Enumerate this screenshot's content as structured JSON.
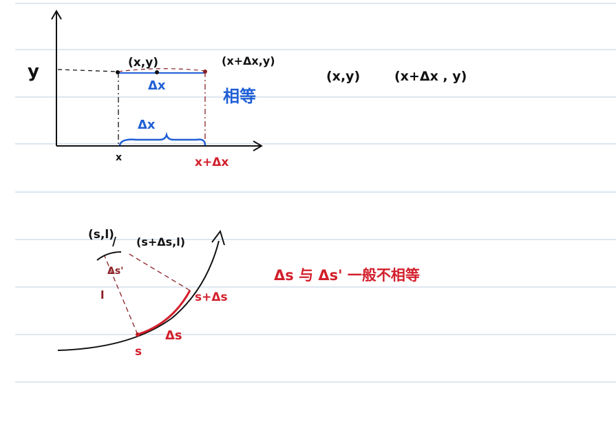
{
  "colors": {
    "ink": "#111111",
    "blue": "#1f5fd6",
    "red": "#d21f2b",
    "darkred": "#8a1f24",
    "ruling": "#c9d6e6"
  },
  "top_diagram": {
    "y_axis_label": "y",
    "point_left": "(x,y)",
    "point_right": "(x+Δx,y)",
    "delta_x_upper": "Δx",
    "delta_x_lower": "Δx",
    "equal_note": "相等",
    "x_tick": "x",
    "x_plus_dx_tick": "x+Δx",
    "notes": [
      "(x,y)",
      "(x+Δx , y)"
    ]
  },
  "bottom_diagram": {
    "point_sl": "(s,l)",
    "point_sdsl": "(s+Δs,l)",
    "arc_label": "Δs'",
    "side_label": "l",
    "point_s": "s",
    "point_sds": "s+Δs",
    "curve_label": "Δs",
    "note": "Δs 与 Δs' 一般不相等"
  }
}
